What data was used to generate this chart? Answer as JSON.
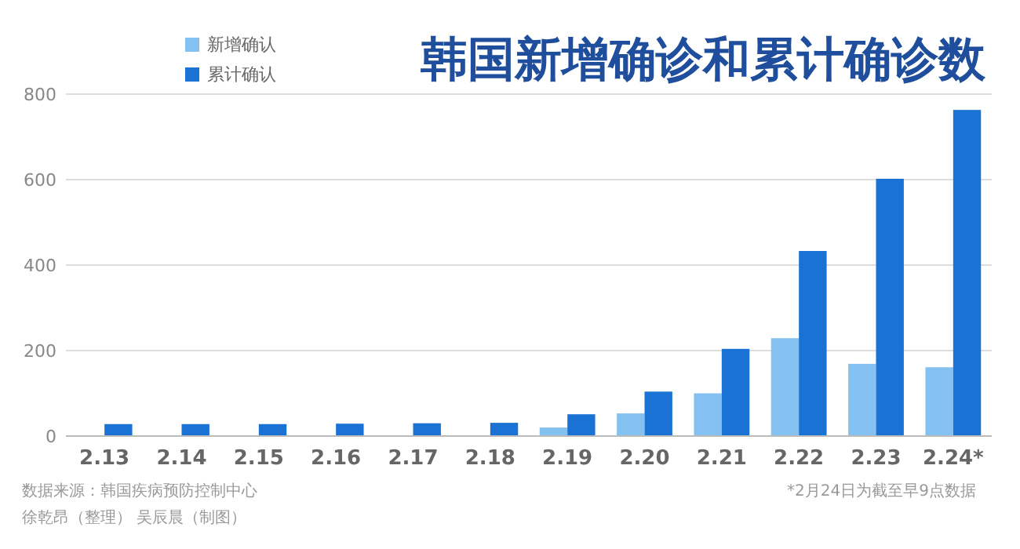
{
  "chart_data": {
    "type": "bar",
    "title": "韩国新增确诊和累计确诊数",
    "categories": [
      "2.13",
      "2.14",
      "2.15",
      "2.16",
      "2.17",
      "2.18",
      "2.19",
      "2.20",
      "2.21",
      "2.22",
      "2.23",
      "2.24*"
    ],
    "series": [
      {
        "name": "新增确认",
        "color": "#85c1f0",
        "values": [
          0,
          0,
          0,
          1,
          1,
          1,
          20,
          53,
          100,
          229,
          169,
          161
        ]
      },
      {
        "name": "累计确认",
        "color": "#1a73d4",
        "values": [
          28,
          28,
          28,
          29,
          30,
          31,
          51,
          104,
          204,
          433,
          602,
          763
        ]
      }
    ],
    "ylim": [
      0,
      800
    ],
    "yticks": [
      0,
      200,
      400,
      600,
      800
    ],
    "grid": "y",
    "legend": "top left",
    "annotations": [
      "数据来源：韩国疾病预防控制中心",
      "徐乾昂（整理） 吴辰晨（制图）",
      "*2月24日为截至早9点数据"
    ]
  }
}
